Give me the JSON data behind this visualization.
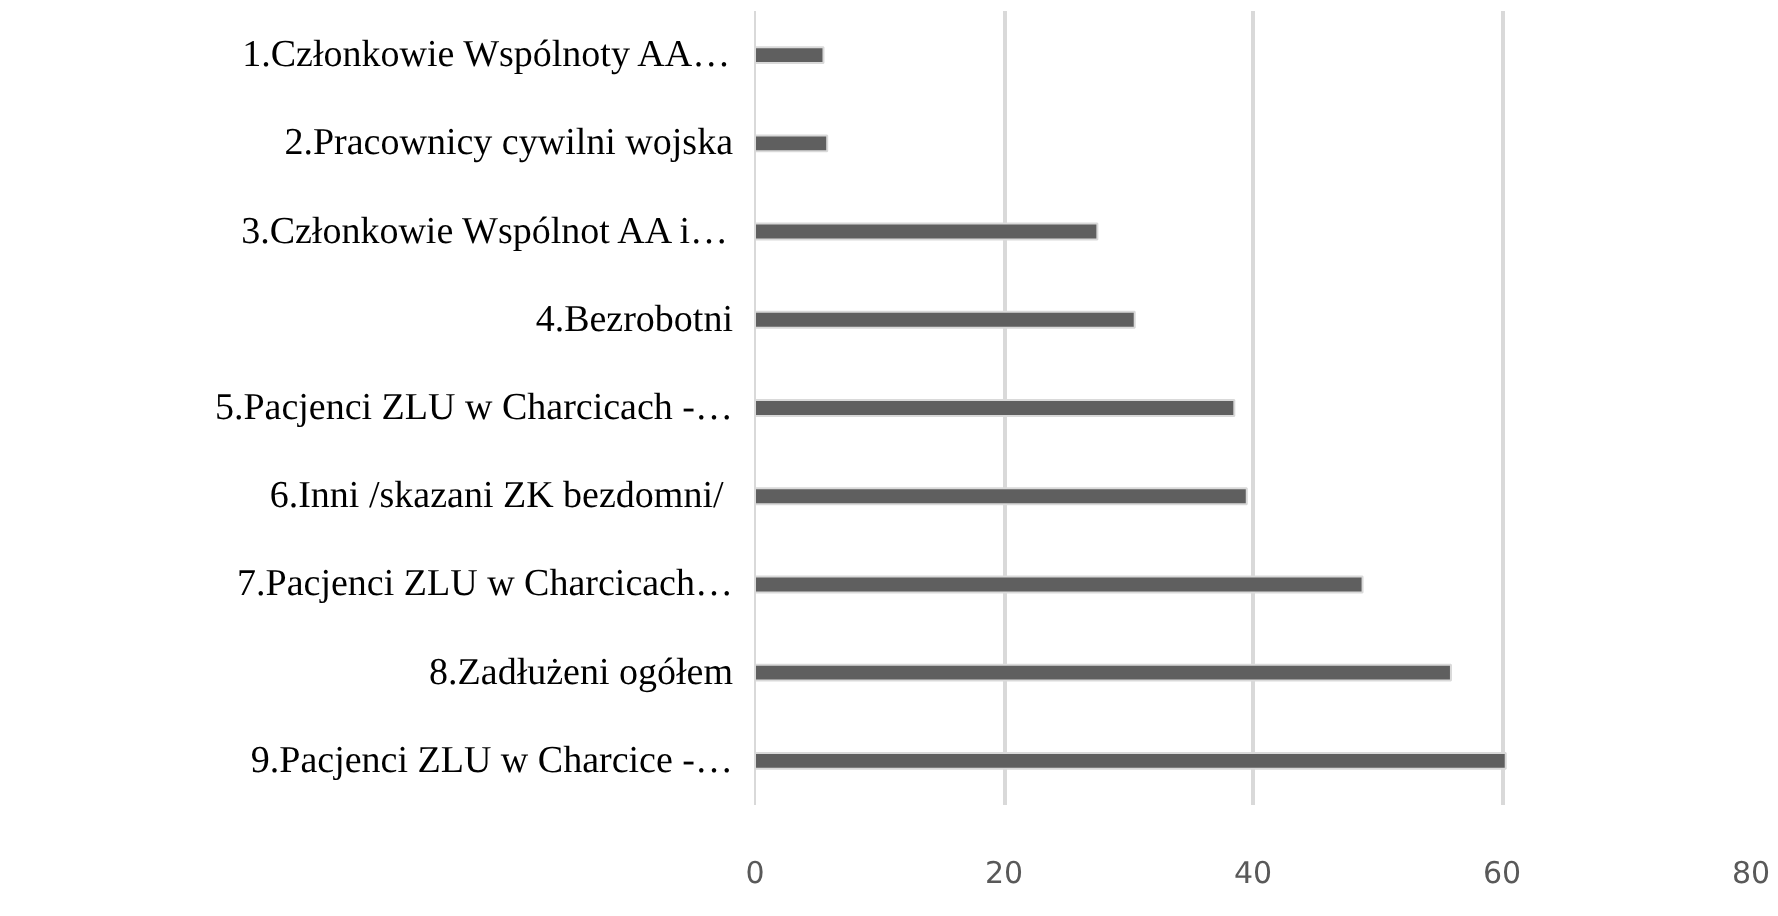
{
  "chart_data": {
    "type": "bar",
    "orientation": "horizontal",
    "categories": [
      "1.Członkowie Wspólnoty AA…",
      "2.Pracownicy cywilni wojska",
      "3.Członkowie Wspólnot AA i…",
      "4.Bezrobotni",
      "5.Pacjenci ZLU w Charcicach -…",
      "6.Inni  /skazani ZK bezdomni/",
      "7.Pacjenci ZLU w Charcicach…",
      "8.Zadłużeni ogółem",
      "9.Pacjenci ZLU w Charcice -…"
    ],
    "values": [
      5.5,
      5.8,
      27.5,
      30.5,
      38.5,
      39.5,
      48.8,
      55.9,
      60.3
    ],
    "color": "#5f5f5f",
    "xlim": [
      0,
      80
    ],
    "xticks": [
      0,
      20,
      40,
      60,
      80
    ],
    "grid": "x"
  }
}
